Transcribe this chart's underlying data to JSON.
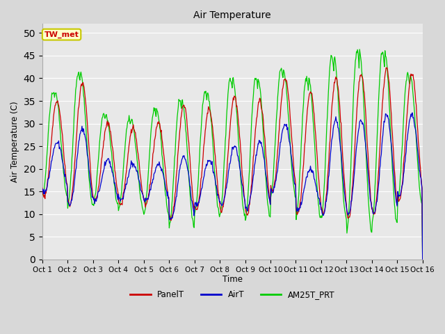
{
  "title": "Air Temperature",
  "ylabel": "Air Temperature (C)",
  "xlabel": "Time",
  "ylim": [
    0,
    52
  ],
  "yticks": [
    0,
    5,
    10,
    15,
    20,
    25,
    30,
    35,
    40,
    45,
    50
  ],
  "x_labels": [
    "Oct 1",
    "Oct 2",
    "Oct 3",
    "Oct 4",
    "Oct 5",
    "Oct 6",
    "Oct 7",
    "Oct 8",
    "Oct 9",
    "Oct 10",
    "Oct 11",
    "Oct 12",
    "Oct 13",
    "Oct 14",
    "Oct 15",
    "Oct 16"
  ],
  "bg_color": "#e8e8e8",
  "line_colors": {
    "PanelT": "#cc0000",
    "AirT": "#0000cc",
    "AM25T_PRT": "#00cc00"
  },
  "station_label": "TW_met",
  "station_label_color": "#cc0000",
  "station_box_bg": "#ffffcc",
  "station_box_edge": "#c8c800",
  "panel_peaks": [
    35,
    39,
    30,
    29,
    30,
    34,
    33,
    36,
    35,
    40,
    37,
    40,
    41,
    42,
    41
  ],
  "panel_troughs": [
    14,
    12,
    13,
    12,
    12,
    9,
    11,
    11,
    10,
    15,
    10,
    10,
    9,
    10,
    13
  ],
  "air_peaks": [
    26,
    29,
    22,
    21,
    21,
    23,
    22,
    25,
    26,
    30,
    20,
    31,
    31,
    32,
    32
  ],
  "air_troughs": [
    15,
    12,
    13,
    13,
    13,
    9,
    12,
    12,
    11,
    15,
    11,
    10,
    10,
    10,
    14
  ],
  "am25_peaks": [
    37,
    41,
    32,
    31,
    33,
    35,
    37,
    40,
    40,
    42,
    40,
    45,
    46,
    46,
    41
  ],
  "am25_troughs": [
    14,
    12,
    12,
    11,
    10,
    7,
    10,
    10,
    9,
    14,
    9,
    9,
    6,
    8,
    12
  ]
}
